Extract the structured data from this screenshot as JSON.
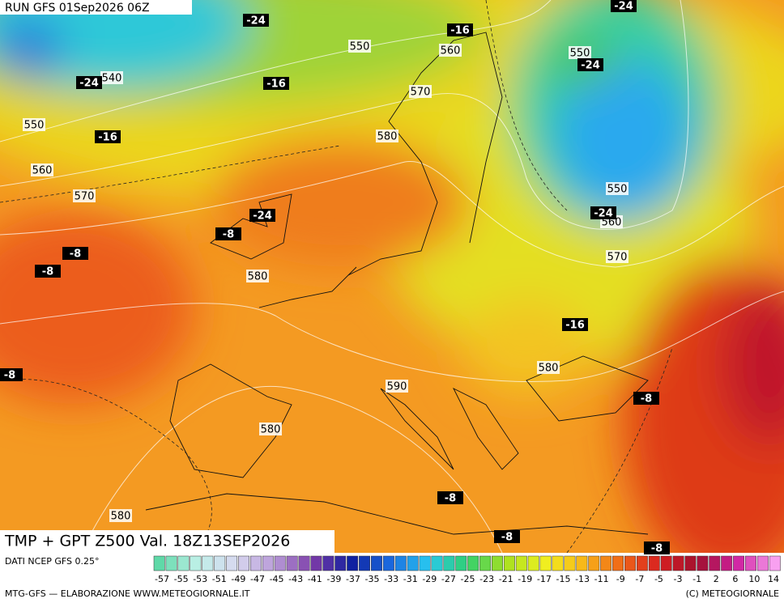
{
  "header": "RUN GFS 01Sep2026 06Z",
  "title": "TMP + GPT Z500 Val. 18Z13SEP2026",
  "source": "DATI NCEP GFS 0.25°",
  "credit": "MTG-GFS — ELABORAZIONE WWW.METEOGIORNALE.IT",
  "copyright": "(C) METEOGIORNALE",
  "height_labels": [
    "550",
    "540",
    "550",
    "560",
    "570",
    "560",
    "570",
    "580",
    "550",
    "550",
    "560",
    "570",
    "580",
    "580",
    "590",
    "580",
    "580"
  ],
  "temp_labels": [
    "-24",
    "-24",
    "-16",
    "-24",
    "-16",
    "-16",
    "-24",
    "-24",
    "-8",
    "-8",
    "-8",
    "-24",
    "-16",
    "-8",
    "-8",
    "-8",
    "-8",
    "-8"
  ],
  "legend_labels": [
    "-57",
    "-55",
    "-53",
    "-51",
    "-49",
    "-47",
    "-45",
    "-43",
    "-41",
    "-39",
    "-37",
    "-35",
    "-33",
    "-31",
    "-29",
    "-27",
    "-25",
    "-23",
    "-21",
    "-19",
    "-17",
    "-15",
    "-13",
    "-11",
    "-9",
    "-7",
    "-5",
    "-3",
    "-1",
    "2",
    "6",
    "10",
    "14"
  ]
}
